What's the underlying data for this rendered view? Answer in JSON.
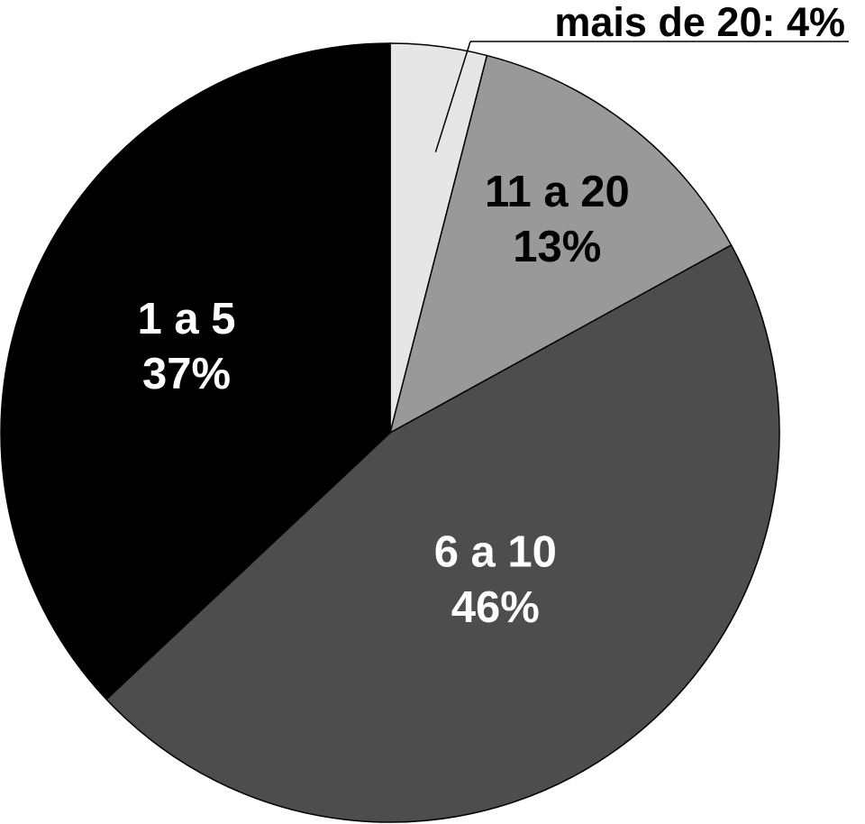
{
  "chart_data": {
    "type": "pie",
    "title": "",
    "slices": [
      {
        "label": "mais de 20",
        "value": 4,
        "value_label": "4%",
        "color": "#e6e6e6",
        "text_color": "#000000",
        "display": "callout"
      },
      {
        "label": "11 a 20",
        "value": 13,
        "value_label": "13%",
        "color": "#999999",
        "text_color": "#000000",
        "display": "inside"
      },
      {
        "label": "6 a 10",
        "value": 46,
        "value_label": "46%",
        "color": "#4d4d4d",
        "text_color": "#ffffff",
        "display": "inside"
      },
      {
        "label": "1 a 5",
        "value": 37,
        "value_label": "37%",
        "color": "#000000",
        "text_color": "#ffffff",
        "display": "inside"
      }
    ],
    "callout_text": "mais de 20: 4%",
    "start_angle": "12 o'clock",
    "direction": "clockwise",
    "legend": "none"
  }
}
